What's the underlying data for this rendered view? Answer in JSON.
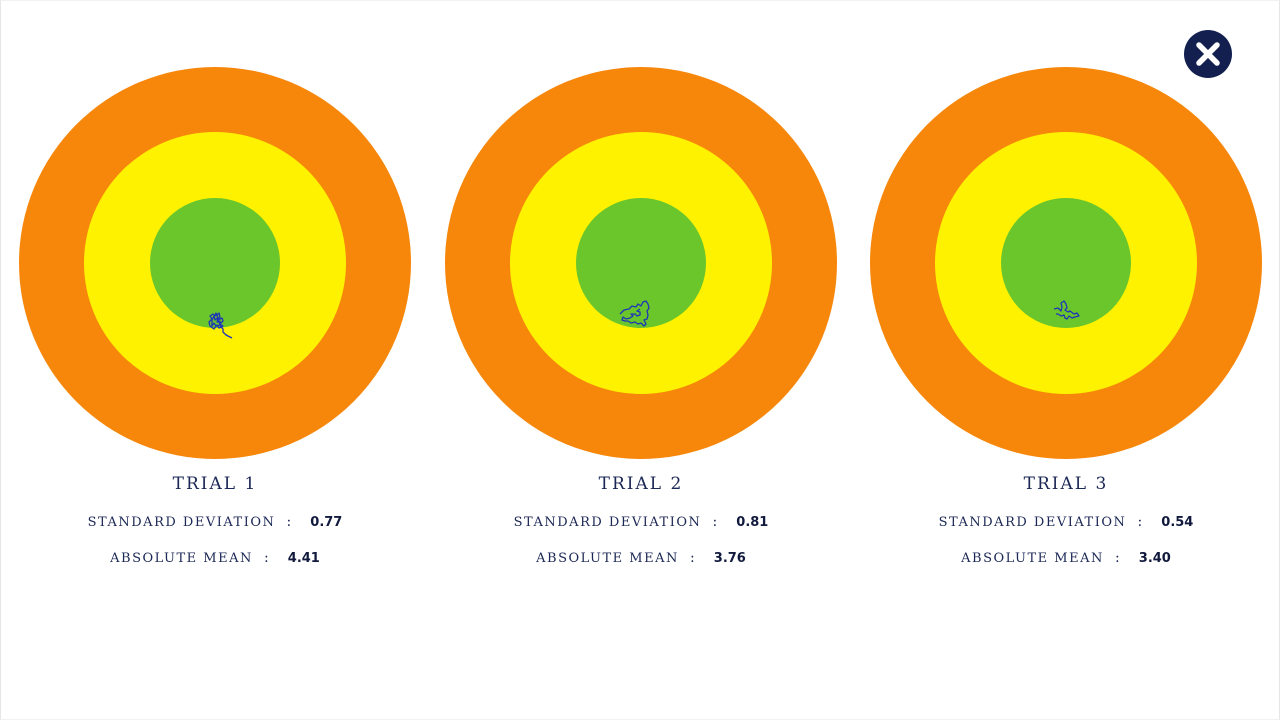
{
  "colors": {
    "outer_ring": "#f7870a",
    "middle_ring": "#fff200",
    "center": "#6ac62b",
    "trace": "#1f35b8",
    "text": "#1b2755",
    "close_bg": "#13204f"
  },
  "close_button": {
    "icon": "close-icon"
  },
  "trials": [
    {
      "title": "TRIAL 1",
      "sd_label": "STANDARD DEVIATION",
      "sd_sep": ":",
      "sd_value": "0.77",
      "mean_label": "ABSOLUTE MEAN",
      "mean_sep": ":",
      "mean_value": "4.41"
    },
    {
      "title": "TRIAL 2",
      "sd_label": "STANDARD DEVIATION",
      "sd_sep": ":",
      "sd_value": "0.81",
      "mean_label": "ABSOLUTE MEAN",
      "mean_sep": ":",
      "mean_value": "3.76"
    },
    {
      "title": "TRIAL 3",
      "sd_label": "STANDARD DEVIATION",
      "sd_sep": ":",
      "sd_value": "0.54",
      "mean_label": "ABSOLUTE MEAN",
      "mean_sep": ":",
      "mean_value": "3.40"
    }
  ]
}
